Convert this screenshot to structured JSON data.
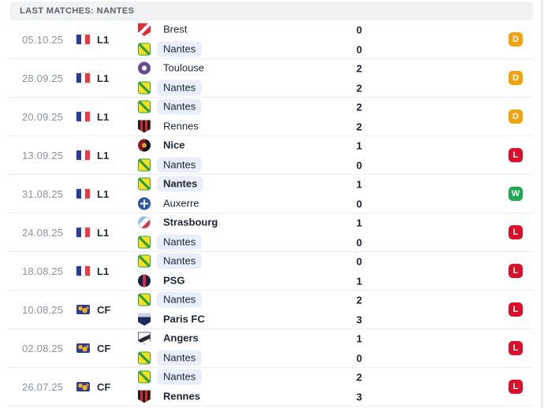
{
  "header": {
    "title": "LAST MATCHES: NANTES"
  },
  "colors": {
    "badge_win": "#1faa52",
    "badge_draw": "#f0a30c",
    "badge_loss": "#dc0f2a",
    "highlight_pill": "#e9eefb"
  },
  "matches": [
    {
      "date": "05.10.25",
      "league": "L1",
      "league_icon": "fr-flag",
      "result": "D",
      "home": {
        "name": "Brest",
        "logo": "brest",
        "score": "0",
        "bold": false,
        "highlight": false
      },
      "away": {
        "name": "Nantes",
        "logo": "nantes",
        "score": "0",
        "bold": false,
        "highlight": true
      }
    },
    {
      "date": "28.09.25",
      "league": "L1",
      "league_icon": "fr-flag",
      "result": "D",
      "home": {
        "name": "Toulouse",
        "logo": "toulouse",
        "score": "2",
        "bold": false,
        "highlight": false
      },
      "away": {
        "name": "Nantes",
        "logo": "nantes",
        "score": "2",
        "bold": false,
        "highlight": true
      }
    },
    {
      "date": "20.09.25",
      "league": "L1",
      "league_icon": "fr-flag",
      "result": "D",
      "home": {
        "name": "Nantes",
        "logo": "nantes",
        "score": "2",
        "bold": false,
        "highlight": true
      },
      "away": {
        "name": "Rennes",
        "logo": "rennes",
        "score": "2",
        "bold": false,
        "highlight": false
      }
    },
    {
      "date": "13.09.25",
      "league": "L1",
      "league_icon": "fr-flag",
      "result": "L",
      "home": {
        "name": "Nice",
        "logo": "nice",
        "score": "1",
        "bold": true,
        "highlight": false
      },
      "away": {
        "name": "Nantes",
        "logo": "nantes",
        "score": "0",
        "bold": false,
        "highlight": true
      }
    },
    {
      "date": "31.08.25",
      "league": "L1",
      "league_icon": "fr-flag",
      "result": "W",
      "home": {
        "name": "Nantes",
        "logo": "nantes",
        "score": "1",
        "bold": true,
        "highlight": true
      },
      "away": {
        "name": "Auxerre",
        "logo": "auxerre",
        "score": "0",
        "bold": false,
        "highlight": false
      }
    },
    {
      "date": "24.08.25",
      "league": "L1",
      "league_icon": "fr-flag",
      "result": "L",
      "home": {
        "name": "Strasbourg",
        "logo": "strasbourg",
        "score": "1",
        "bold": true,
        "highlight": false
      },
      "away": {
        "name": "Nantes",
        "logo": "nantes",
        "score": "0",
        "bold": false,
        "highlight": true
      }
    },
    {
      "date": "18.08.25",
      "league": "L1",
      "league_icon": "fr-flag",
      "result": "L",
      "home": {
        "name": "Nantes",
        "logo": "nantes",
        "score": "0",
        "bold": false,
        "highlight": true
      },
      "away": {
        "name": "PSG",
        "logo": "psg",
        "score": "1",
        "bold": true,
        "highlight": false
      }
    },
    {
      "date": "10.08.25",
      "league": "CF",
      "league_icon": "world",
      "result": "L",
      "home": {
        "name": "Nantes",
        "logo": "nantes",
        "score": "2",
        "bold": false,
        "highlight": true
      },
      "away": {
        "name": "Paris FC",
        "logo": "parisfc",
        "score": "3",
        "bold": true,
        "highlight": false
      }
    },
    {
      "date": "02.08.25",
      "league": "CF",
      "league_icon": "world",
      "result": "L",
      "home": {
        "name": "Angers",
        "logo": "angers",
        "score": "1",
        "bold": true,
        "highlight": false
      },
      "away": {
        "name": "Nantes",
        "logo": "nantes",
        "score": "0",
        "bold": false,
        "highlight": true
      }
    },
    {
      "date": "26.07.25",
      "league": "CF",
      "league_icon": "world",
      "result": "L",
      "home": {
        "name": "Nantes",
        "logo": "nantes",
        "score": "2",
        "bold": false,
        "highlight": true
      },
      "away": {
        "name": "Rennes",
        "logo": "rennes",
        "score": "3",
        "bold": true,
        "highlight": false
      }
    }
  ]
}
